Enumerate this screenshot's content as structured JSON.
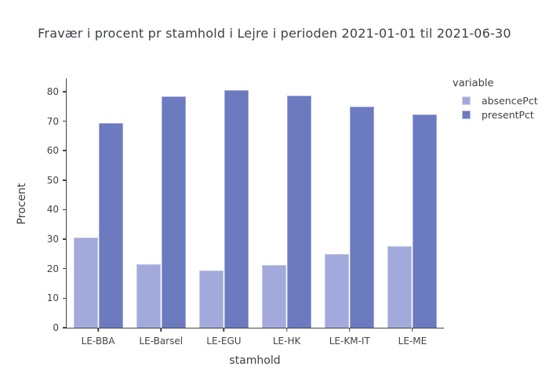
{
  "chart_data": {
    "type": "bar",
    "mode": "grouped",
    "title": "Fravær i procent pr stamhold i Lejre i perioden 2021-01-01 til 2021-06-30",
    "xlabel": "stamhold",
    "ylabel": "Procent",
    "categories": [
      "LE-BBA",
      "LE-Barsel",
      "LE-EGU",
      "LE-HK",
      "LE-KM-IT",
      "LE-ME"
    ],
    "series": [
      {
        "name": "absencePct",
        "color": "#a2a9db",
        "values": [
          30.6,
          21.5,
          19.5,
          21.3,
          25.0,
          27.7
        ]
      },
      {
        "name": "presentPct",
        "color": "#6c7ac0",
        "values": [
          69.4,
          78.4,
          80.4,
          78.6,
          74.9,
          72.3
        ]
      }
    ],
    "ylim": [
      0,
      84.5
    ],
    "yticks": [
      0,
      10,
      20,
      30,
      40,
      50,
      60,
      70,
      80
    ],
    "grid": false,
    "background": "#ffffff",
    "axis_color": "#444444",
    "legend": {
      "title": "variable",
      "position": "right-top"
    }
  }
}
